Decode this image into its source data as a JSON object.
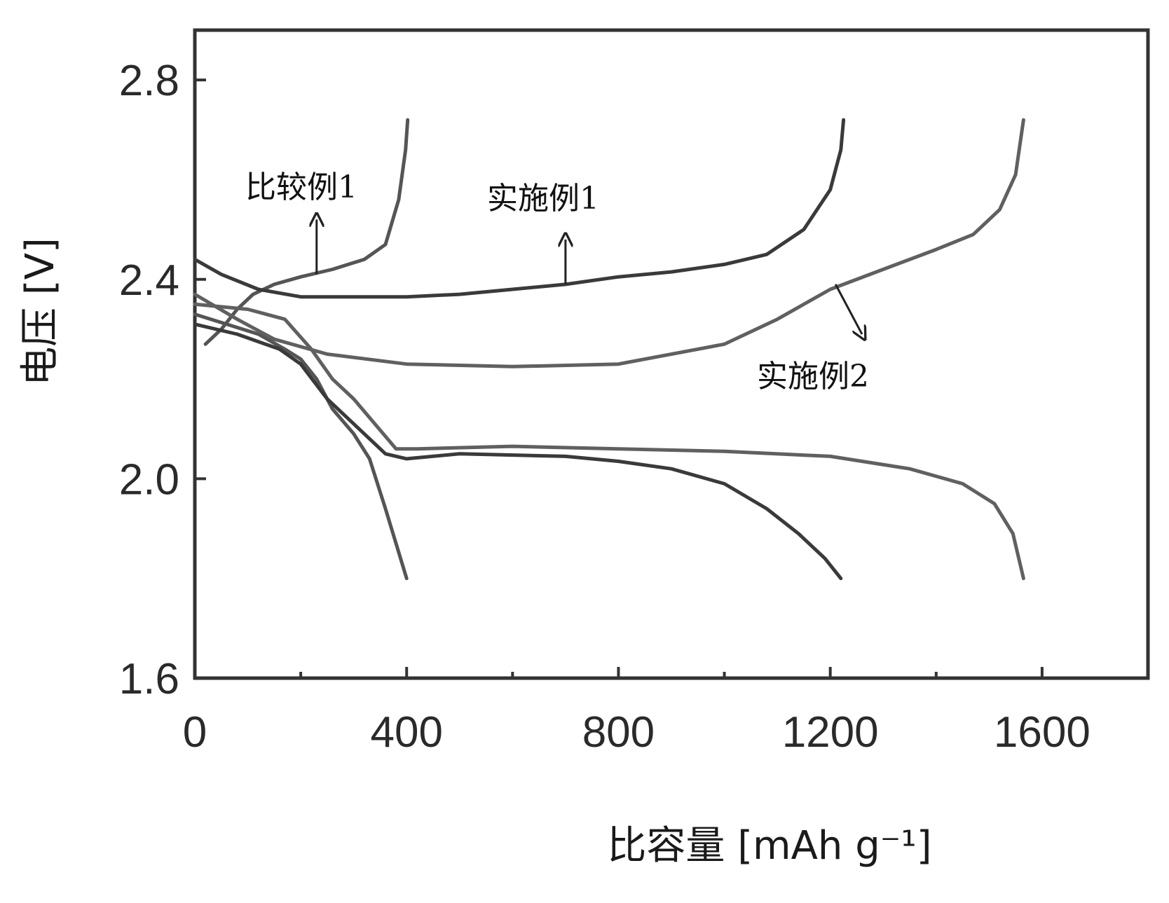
{
  "chart_data": {
    "type": "line",
    "xlabel": "比容量 [mAh g⁻¹]",
    "ylabel": "电压 [V]",
    "xlim": [
      0,
      1800
    ],
    "ylim": [
      1.6,
      2.9
    ],
    "xticks": [
      0,
      400,
      800,
      1200,
      1600
    ],
    "xtick_labels": [
      "0",
      "400",
      "800",
      "1200",
      "1600"
    ],
    "yticks": [
      1.6,
      2.0,
      2.4,
      2.8
    ],
    "ytick_labels": [
      "1.6",
      "2.0",
      "2.4",
      "2.8"
    ],
    "grid": false,
    "legend": "none",
    "series": [
      {
        "name": "比较例1",
        "color": "#555555",
        "discharge": [
          [
            0,
            2.33
          ],
          [
            60,
            2.31
          ],
          [
            120,
            2.29
          ],
          [
            170,
            2.26
          ],
          [
            200,
            2.24
          ],
          [
            230,
            2.2
          ],
          [
            260,
            2.14
          ],
          [
            300,
            2.09
          ],
          [
            330,
            2.04
          ],
          [
            360,
            1.94
          ],
          [
            380,
            1.87
          ],
          [
            400,
            1.8
          ]
        ],
        "charge": [
          [
            20,
            2.27
          ],
          [
            50,
            2.3
          ],
          [
            80,
            2.34
          ],
          [
            110,
            2.37
          ],
          [
            150,
            2.39
          ],
          [
            200,
            2.405
          ],
          [
            260,
            2.42
          ],
          [
            320,
            2.44
          ],
          [
            360,
            2.47
          ],
          [
            385,
            2.56
          ],
          [
            398,
            2.66
          ],
          [
            402,
            2.72
          ]
        ]
      },
      {
        "name": "实施例1",
        "color": "#3a3a3a",
        "discharge": [
          [
            0,
            2.31
          ],
          [
            80,
            2.29
          ],
          [
            160,
            2.26
          ],
          [
            200,
            2.23
          ],
          [
            250,
            2.16
          ],
          [
            300,
            2.11
          ],
          [
            360,
            2.05
          ],
          [
            400,
            2.04
          ],
          [
            500,
            2.05
          ],
          [
            700,
            2.045
          ],
          [
            800,
            2.035
          ],
          [
            900,
            2.02
          ],
          [
            1000,
            1.99
          ],
          [
            1080,
            1.94
          ],
          [
            1140,
            1.89
          ],
          [
            1190,
            1.84
          ],
          [
            1220,
            1.8
          ]
        ],
        "charge": [
          [
            0,
            2.44
          ],
          [
            50,
            2.41
          ],
          [
            120,
            2.38
          ],
          [
            200,
            2.365
          ],
          [
            300,
            2.365
          ],
          [
            400,
            2.365
          ],
          [
            500,
            2.37
          ],
          [
            600,
            2.38
          ],
          [
            700,
            2.39
          ],
          [
            800,
            2.405
          ],
          [
            900,
            2.415
          ],
          [
            1000,
            2.43
          ],
          [
            1080,
            2.45
          ],
          [
            1150,
            2.5
          ],
          [
            1200,
            2.58
          ],
          [
            1220,
            2.66
          ],
          [
            1225,
            2.72
          ]
        ]
      },
      {
        "name": "实施例2",
        "color": "#606060",
        "discharge": [
          [
            0,
            2.35
          ],
          [
            100,
            2.34
          ],
          [
            170,
            2.32
          ],
          [
            220,
            2.26
          ],
          [
            260,
            2.2
          ],
          [
            300,
            2.16
          ],
          [
            340,
            2.11
          ],
          [
            380,
            2.06
          ],
          [
            420,
            2.06
          ],
          [
            600,
            2.065
          ],
          [
            800,
            2.06
          ],
          [
            1000,
            2.055
          ],
          [
            1200,
            2.045
          ],
          [
            1350,
            2.02
          ],
          [
            1450,
            1.99
          ],
          [
            1510,
            1.95
          ],
          [
            1545,
            1.89
          ],
          [
            1565,
            1.8
          ]
        ],
        "charge": [
          [
            0,
            2.37
          ],
          [
            80,
            2.32
          ],
          [
            150,
            2.28
          ],
          [
            250,
            2.25
          ],
          [
            400,
            2.23
          ],
          [
            600,
            2.225
          ],
          [
            800,
            2.23
          ],
          [
            1000,
            2.27
          ],
          [
            1100,
            2.32
          ],
          [
            1200,
            2.38
          ],
          [
            1300,
            2.42
          ],
          [
            1400,
            2.46
          ],
          [
            1470,
            2.49
          ],
          [
            1520,
            2.54
          ],
          [
            1550,
            2.61
          ],
          [
            1565,
            2.72
          ]
        ]
      }
    ],
    "annotations": [
      {
        "text": "比较例1",
        "arrow_from": [
          230,
          2.41
        ],
        "arrow_to": [
          230,
          2.52
        ]
      },
      {
        "text": "实施例1",
        "arrow_from": [
          700,
          2.39
        ],
        "arrow_to": [
          700,
          2.48
        ]
      },
      {
        "text": "实施例2",
        "arrow_from": [
          1210,
          2.39
        ],
        "arrow_to": [
          1260,
          2.29
        ]
      }
    ]
  }
}
